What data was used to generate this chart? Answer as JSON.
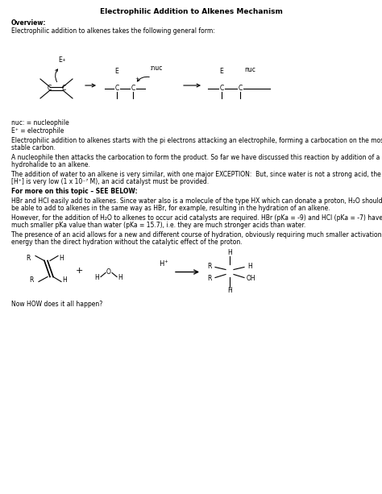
{
  "title": "Electrophilic Addition to Alkenes Mechanism",
  "bg_color": "#ffffff",
  "figsize": [
    4.74,
    6.13
  ],
  "dpi": 100,
  "overview_bold": "Overview:",
  "line1": "Electrophilic addition to alkenes takes the following general form:",
  "nuc_legend1": "nuc: = nucleophile",
  "nuc_legend2": "E⁺ = electrophile",
  "para1a": "Electrophilic addition to alkenes starts with the pi electrons attacking an electrophile, forming a carbocation on the most",
  "para1b": "stable carbon.",
  "para2a": "A nucleophile then attacks the carbocation to form the product. So far we have discussed this reaction by addition of a",
  "para2b": "hydrohalide to an alkene.",
  "para3a": "The addition of water to an alkene is very similar, with one major EXCEPTION:  But, since water is not a strong acid, the",
  "para3b": "[H⁺] is very low (1 x 10⁻⁷ M), an acid catalyst must be provided.",
  "para4_bold": "For more on this topic – SEE BELOW:",
  "para5a": "HBr and HCl easily add to alkenes. Since water also is a molecule of the type HX which can donate a proton, H₂O should",
  "para5b": "be able to add to alkenes in the same way as HBr, for example, resulting in the hydration of an alkene.",
  "para6a": "However, for the addition of H₂O to alkenes to occur acid catalysts are required. HBr (pKa = -9) and HCl (pKa = -7) have a",
  "para6b": "much smaller pKa value than water (pKa = 15.7), i.e. they are much stronger acids than water.",
  "para7a": "The presence of an acid allows for a new and different course of hydration, obviously requiring much smaller activation",
  "para7b": "energy than the direct hydration without the catalytic effect of the proton.",
  "final_line": "Now HOW does it all happen?"
}
